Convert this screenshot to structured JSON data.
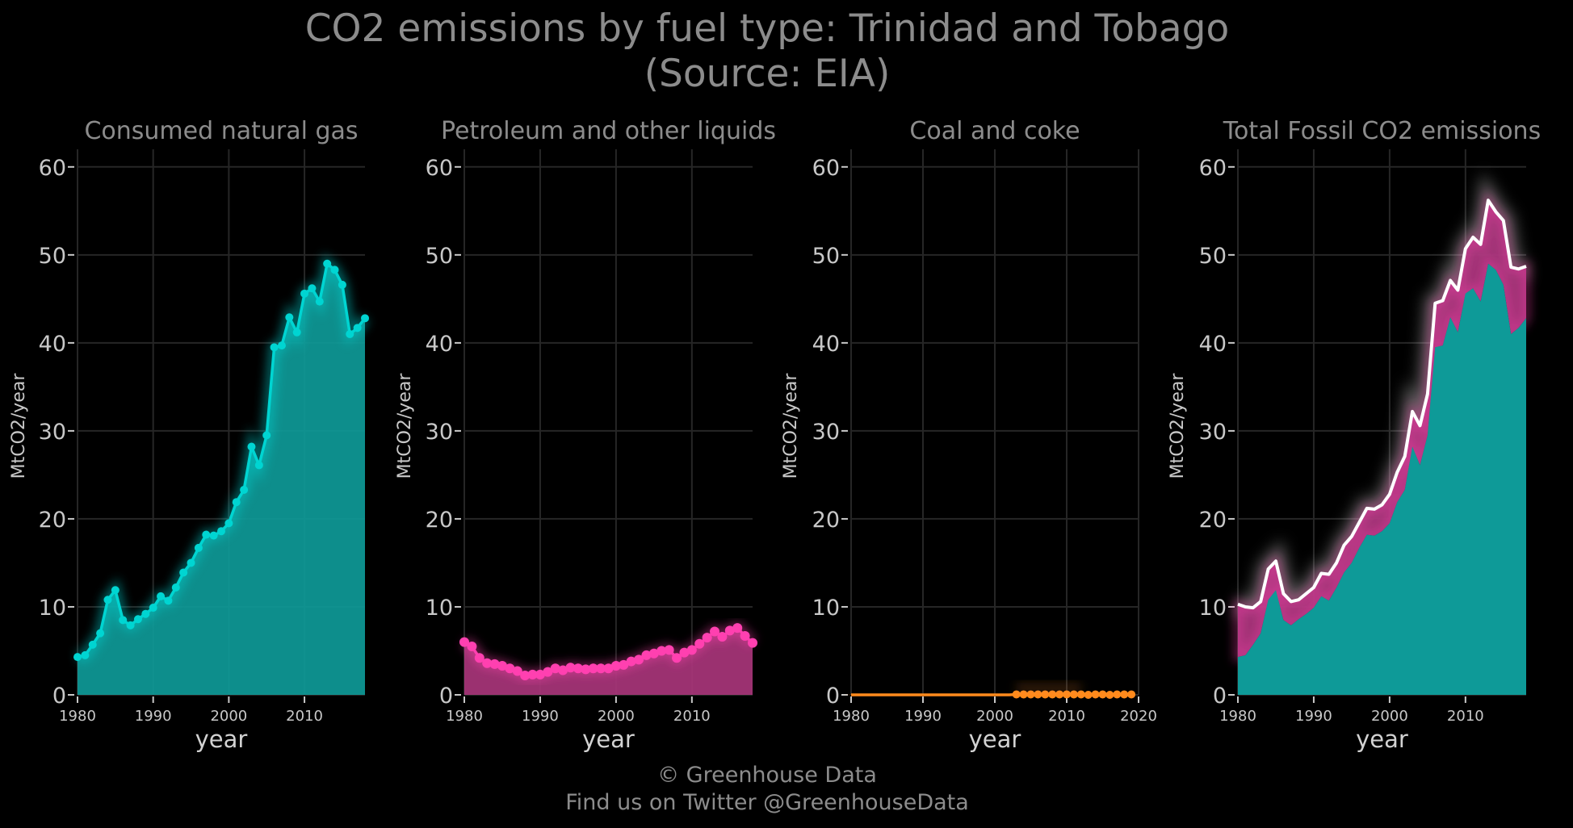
{
  "title": "CO2 emissions by fuel type: Trinidad and Tobago",
  "subtitle": "(Source: EIA)",
  "footer": {
    "line1": "© Greenhouse Data",
    "line2": "Find us on Twitter @GreenhouseData"
  },
  "colors": {
    "natural_gas": "#00d5d2",
    "natural_gas_fill": "#0e9a98",
    "petroleum": "#ff40b0",
    "petroleum_fill": "#a8357a",
    "coal": "#ff8a1c",
    "total_line": "#ffffff",
    "grid": "#262626"
  },
  "chart_data": [
    {
      "id": "gas",
      "type": "area",
      "title": "Consumed natural gas",
      "xlabel": "year",
      "ylabel": "MtCO2/year",
      "xticks": [
        1980,
        1990,
        2000,
        2010
      ],
      "xlim": [
        1980,
        2018
      ],
      "yticks": [
        0,
        10,
        20,
        30,
        40,
        50,
        60
      ],
      "ylim": [
        0,
        62
      ],
      "x": [
        1980,
        1981,
        1982,
        1983,
        1984,
        1985,
        1986,
        1987,
        1988,
        1989,
        1990,
        1991,
        1992,
        1993,
        1994,
        1995,
        1996,
        1997,
        1998,
        1999,
        2000,
        2001,
        2002,
        2003,
        2004,
        2005,
        2006,
        2007,
        2008,
        2009,
        2010,
        2011,
        2012,
        2013,
        2014,
        2015,
        2016,
        2017,
        2018
      ],
      "series": [
        {
          "values": [
            4.3,
            4.5,
            5.7,
            7.0,
            10.8,
            11.9,
            8.5,
            7.9,
            8.6,
            9.2,
            9.9,
            11.2,
            10.7,
            12.2,
            13.9,
            15.0,
            16.7,
            18.2,
            18.1,
            18.6,
            19.5,
            21.9,
            23.3,
            28.2,
            26.1,
            29.5,
            39.5,
            39.7,
            42.9,
            41.2,
            45.6,
            46.2,
            44.7,
            49.0,
            48.3,
            46.6,
            41.0,
            41.7,
            42.8
          ]
        }
      ]
    },
    {
      "id": "petroleum",
      "type": "area",
      "title": "Petroleum and other liquids",
      "xlabel": "year",
      "ylabel": "MtCO2/year",
      "xticks": [
        1980,
        1990,
        2000,
        2010
      ],
      "xlim": [
        1980,
        2018
      ],
      "yticks": [
        0,
        10,
        20,
        30,
        40,
        50,
        60
      ],
      "ylim": [
        0,
        62
      ],
      "x": [
        1980,
        1981,
        1982,
        1983,
        1984,
        1985,
        1986,
        1987,
        1988,
        1989,
        1990,
        1991,
        1992,
        1993,
        1994,
        1995,
        1996,
        1997,
        1998,
        1999,
        2000,
        2001,
        2002,
        2003,
        2004,
        2005,
        2006,
        2007,
        2008,
        2009,
        2010,
        2011,
        2012,
        2013,
        2014,
        2015,
        2016,
        2017,
        2018
      ],
      "series": [
        {
          "values": [
            6.0,
            5.5,
            4.2,
            3.6,
            3.5,
            3.3,
            3.0,
            2.7,
            2.2,
            2.3,
            2.3,
            2.6,
            3.0,
            2.8,
            3.1,
            3.0,
            2.9,
            3.0,
            3.0,
            3.0,
            3.3,
            3.4,
            3.8,
            4.0,
            4.5,
            4.7,
            5.0,
            5.1,
            4.2,
            4.8,
            5.1,
            5.8,
            6.5,
            7.2,
            6.6,
            7.3,
            7.6,
            6.7,
            5.9
          ]
        }
      ]
    },
    {
      "id": "coal",
      "type": "area",
      "title": "Coal and coke",
      "xlabel": "year",
      "ylabel": "MtCO2/year",
      "xticks": [
        1980,
        1990,
        2000,
        2010,
        2020
      ],
      "xlim": [
        1980,
        2020
      ],
      "yticks": [
        0,
        10,
        20,
        30,
        40,
        50,
        60
      ],
      "ylim": [
        0,
        62
      ],
      "x": [
        1980,
        2002,
        2003,
        2004,
        2005,
        2006,
        2007,
        2008,
        2009,
        2010,
        2011,
        2012,
        2013,
        2014,
        2015,
        2016,
        2017,
        2018,
        2019
      ],
      "series": [
        {
          "values": [
            0,
            0,
            0.05,
            0.05,
            0.05,
            0.05,
            0.05,
            0.05,
            0.05,
            0.05,
            0.05,
            0.05,
            0,
            0.05,
            0.05,
            0,
            0.05,
            0.05,
            0.05
          ]
        }
      ]
    },
    {
      "id": "total",
      "type": "area",
      "title": "Total Fossil CO2 emissions",
      "xlabel": "year",
      "ylabel": "MtCO2/year",
      "xticks": [
        1980,
        1990,
        2000,
        2010
      ],
      "xlim": [
        1980,
        2018
      ],
      "yticks": [
        0,
        10,
        20,
        30,
        40,
        50,
        60
      ],
      "ylim": [
        0,
        62
      ],
      "x": [
        1980,
        1981,
        1982,
        1983,
        1984,
        1985,
        1986,
        1987,
        1988,
        1989,
        1990,
        1991,
        1992,
        1993,
        1994,
        1995,
        1996,
        1997,
        1998,
        1999,
        2000,
        2001,
        2002,
        2003,
        2004,
        2005,
        2006,
        2007,
        2008,
        2009,
        2010,
        2011,
        2012,
        2013,
        2014,
        2015,
        2016,
        2017,
        2018
      ],
      "stack": [
        "gas",
        "petroleum"
      ],
      "total_line": true
    }
  ]
}
